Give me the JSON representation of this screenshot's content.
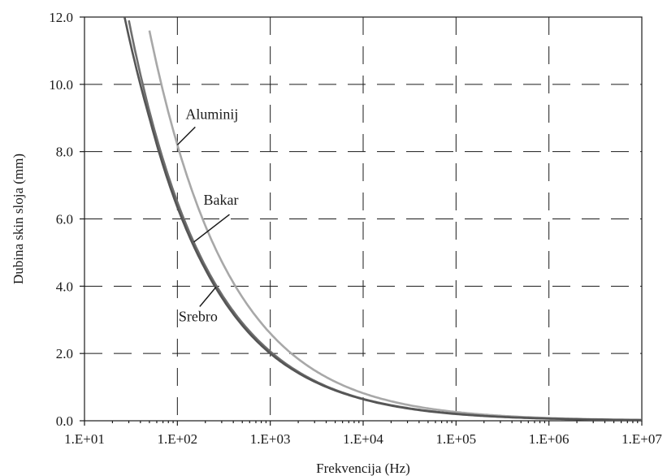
{
  "chart_data": {
    "type": "line",
    "title": "",
    "xlabel": "Frekvencija (Hz)",
    "ylabel": "Dubina skin sloja (mm)",
    "x_scale": "log",
    "xlim": [
      10,
      10000000
    ],
    "ylim": [
      0,
      12
    ],
    "grid": true,
    "x_tick_values": [
      10,
      100,
      1000,
      10000,
      100000,
      1000000,
      10000000
    ],
    "x_tick_labels": [
      "1.E+01",
      "1.E+02",
      "1.E+03",
      "1.E+04",
      "1.E+05",
      "1.E+06",
      "1.E+07"
    ],
    "y_tick_values": [
      0,
      2,
      4,
      6,
      8,
      10,
      12
    ],
    "y_tick_labels": [
      "0.0",
      "2.0",
      "4.0",
      "6.0",
      "8.0",
      "10.0",
      "12.0"
    ],
    "series": [
      {
        "name": "Aluminij",
        "color": "#a8a8a8",
        "x": [
          50,
          100,
          200,
          1000,
          10000,
          100000,
          1000000,
          10000000
        ],
        "y": [
          11.6,
          8.2,
          5.8,
          2.6,
          0.82,
          0.26,
          0.082,
          0.026
        ]
      },
      {
        "name": "Bakar",
        "color": "#6e6e6e",
        "x": [
          30,
          50,
          100,
          200,
          1000,
          10000,
          100000,
          1000000,
          10000000
        ],
        "y": [
          11.9,
          9.2,
          6.5,
          4.6,
          2.06,
          0.65,
          0.21,
          0.065,
          0.021
        ]
      },
      {
        "name": "Srebro",
        "color": "#555555",
        "x": [
          27,
          50,
          100,
          200,
          1000,
          10000,
          100000,
          1000000,
          10000000
        ],
        "y": [
          12.0,
          9.0,
          6.35,
          4.5,
          2.0,
          0.64,
          0.2,
          0.064,
          0.02
        ]
      }
    ],
    "annotations": [
      {
        "text": "Aluminij",
        "series": "Aluminij",
        "at_x": 100
      },
      {
        "text": "Bakar",
        "series": "Bakar",
        "at_x": 150
      },
      {
        "text": "Srebro",
        "series": "Srebro",
        "at_x": 250
      }
    ]
  }
}
